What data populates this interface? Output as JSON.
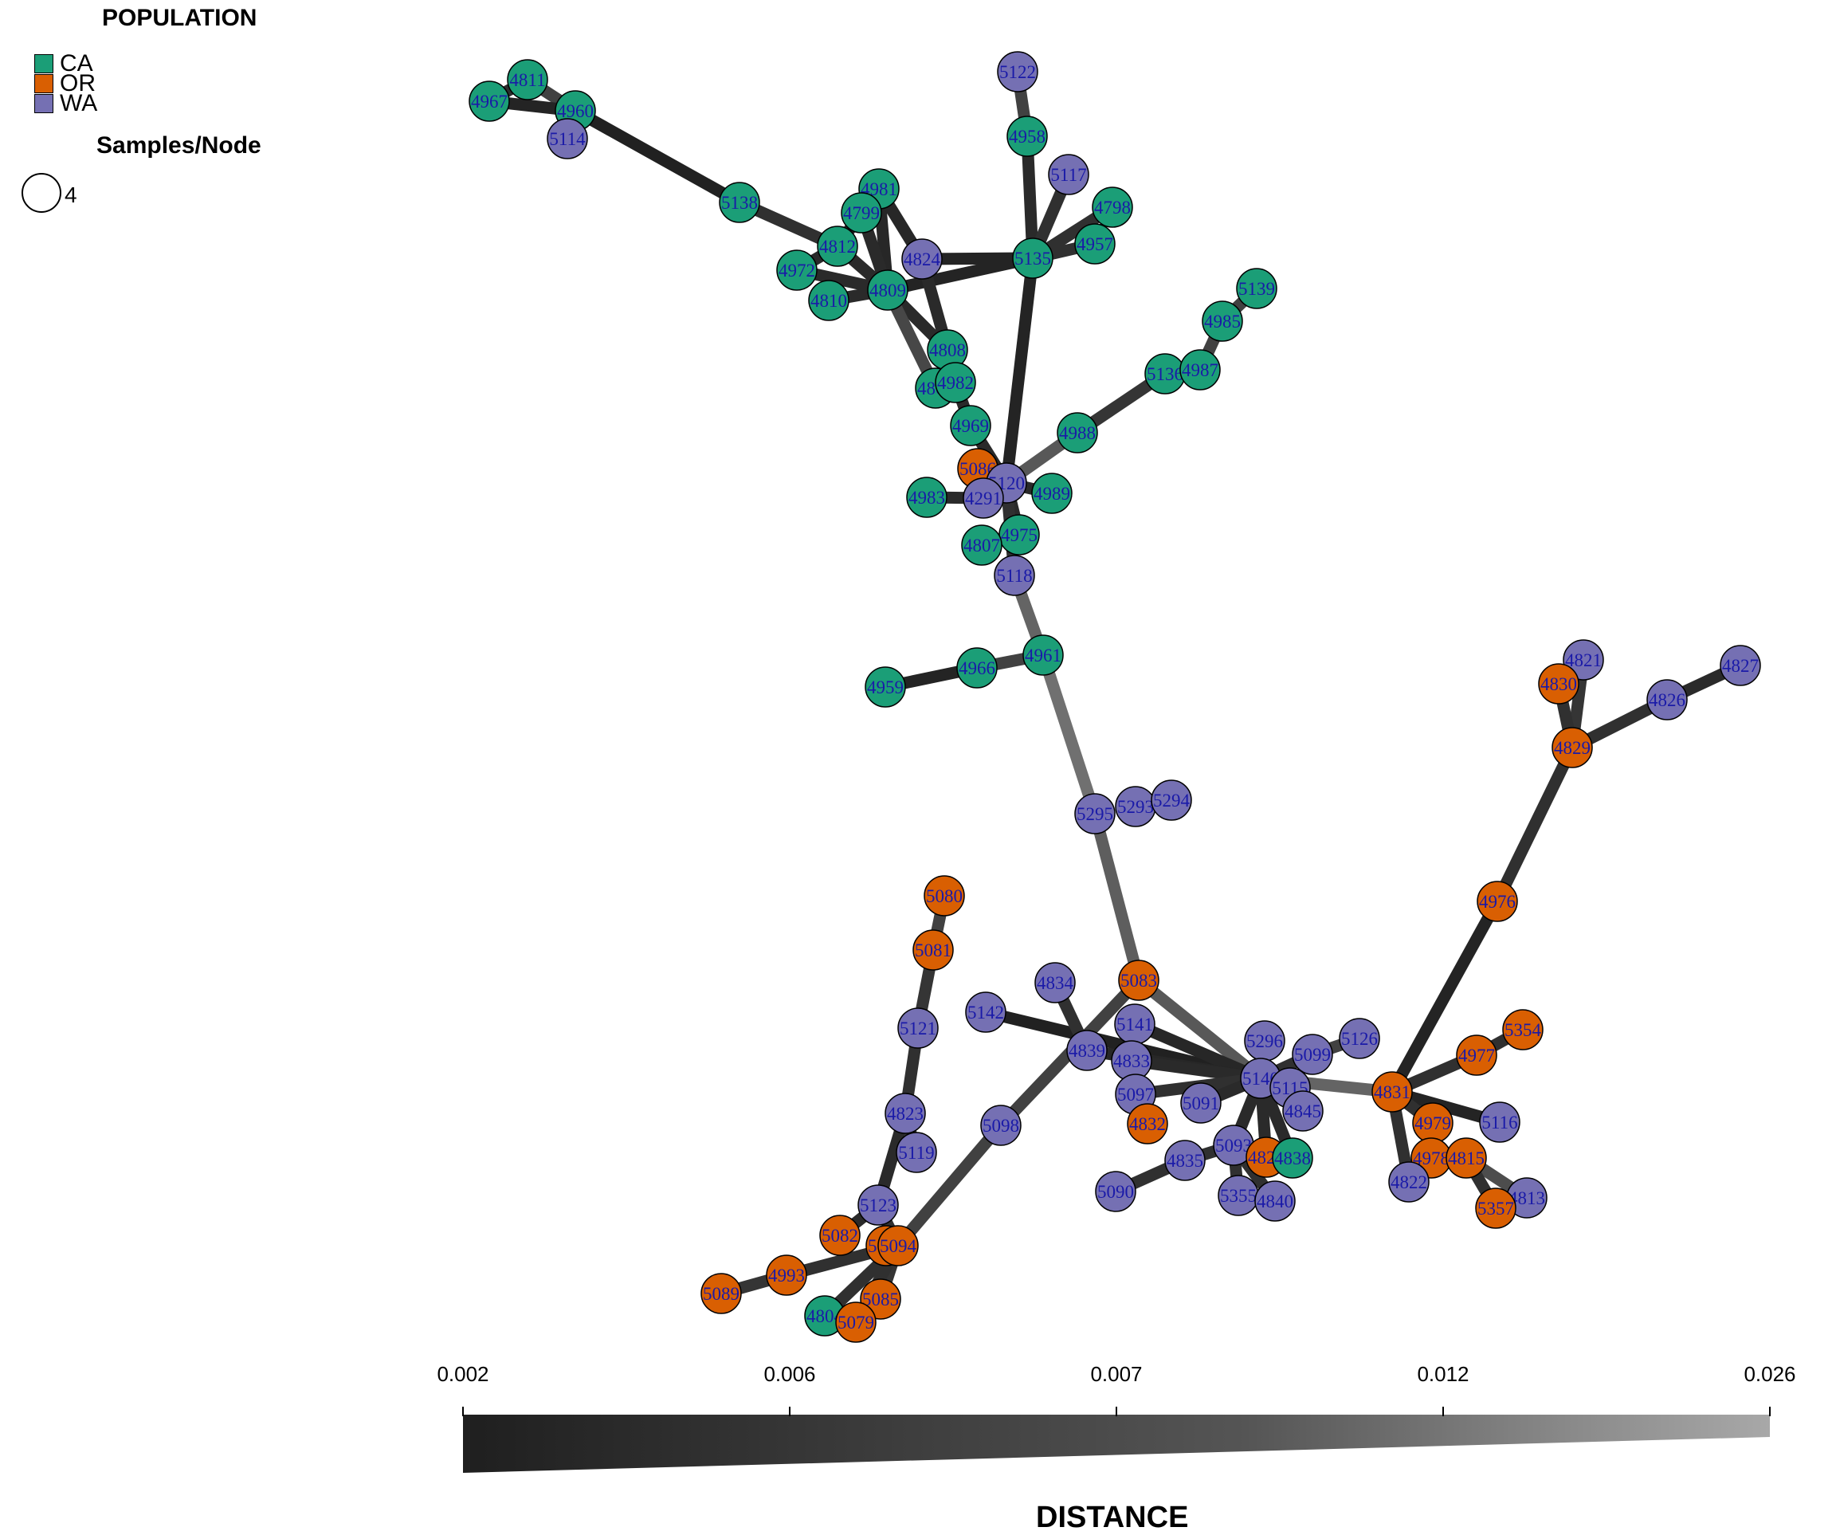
{
  "legend": {
    "title": "POPULATION",
    "items": [
      {
        "label": "CA",
        "color": "#1b9e77"
      },
      {
        "label": "OR",
        "color": "#d95f02"
      },
      {
        "label": "WA",
        "color": "#7570b3"
      }
    ],
    "size_title": "Samples/Node",
    "size_value": "4"
  },
  "scale": {
    "title": "DISTANCE",
    "ticks": [
      "0.002",
      "0.006",
      "0.007",
      "0.012",
      "0.026"
    ]
  },
  "chart_data": {
    "type": "network",
    "node_label_color": "#1a1aa8",
    "nodes": [
      {
        "id": "5122",
        "pop": "WA"
      },
      {
        "id": "4811",
        "pop": "CA"
      },
      {
        "id": "4967",
        "pop": "CA"
      },
      {
        "id": "4960",
        "pop": "CA"
      },
      {
        "id": "5114",
        "pop": "WA"
      },
      {
        "id": "4958",
        "pop": "CA"
      },
      {
        "id": "5117",
        "pop": "WA"
      },
      {
        "id": "4981",
        "pop": "CA"
      },
      {
        "id": "4798",
        "pop": "CA"
      },
      {
        "id": "5138",
        "pop": "CA"
      },
      {
        "id": "4799",
        "pop": "CA"
      },
      {
        "id": "4957",
        "pop": "CA"
      },
      {
        "id": "4812",
        "pop": "CA"
      },
      {
        "id": "4824",
        "pop": "WA"
      },
      {
        "id": "5135",
        "pop": "CA"
      },
      {
        "id": "4972",
        "pop": "CA"
      },
      {
        "id": "4809",
        "pop": "CA"
      },
      {
        "id": "4810",
        "pop": "CA"
      },
      {
        "id": "5139",
        "pop": "CA"
      },
      {
        "id": "4985",
        "pop": "CA"
      },
      {
        "id": "4808",
        "pop": "CA"
      },
      {
        "id": "5136",
        "pop": "CA"
      },
      {
        "id": "4987",
        "pop": "CA"
      },
      {
        "id": "4805",
        "pop": "CA"
      },
      {
        "id": "4982",
        "pop": "CA"
      },
      {
        "id": "4969",
        "pop": "CA"
      },
      {
        "id": "4988",
        "pop": "CA"
      },
      {
        "id": "5086",
        "pop": "OR"
      },
      {
        "id": "5120",
        "pop": "WA"
      },
      {
        "id": "4983",
        "pop": "CA"
      },
      {
        "id": "4291",
        "pop": "WA"
      },
      {
        "id": "4989",
        "pop": "CA"
      },
      {
        "id": "4975",
        "pop": "CA"
      },
      {
        "id": "4807",
        "pop": "CA"
      },
      {
        "id": "5118",
        "pop": "WA"
      },
      {
        "id": "4961",
        "pop": "CA"
      },
      {
        "id": "4966",
        "pop": "CA"
      },
      {
        "id": "4959",
        "pop": "CA"
      },
      {
        "id": "4821",
        "pop": "WA"
      },
      {
        "id": "4830",
        "pop": "OR"
      },
      {
        "id": "4827",
        "pop": "WA"
      },
      {
        "id": "4826",
        "pop": "WA"
      },
      {
        "id": "4829",
        "pop": "OR"
      },
      {
        "id": "5295",
        "pop": "WA"
      },
      {
        "id": "5293",
        "pop": "WA"
      },
      {
        "id": "5294",
        "pop": "WA"
      },
      {
        "id": "5080",
        "pop": "OR"
      },
      {
        "id": "4976",
        "pop": "OR"
      },
      {
        "id": "5081",
        "pop": "OR"
      },
      {
        "id": "5083",
        "pop": "OR"
      },
      {
        "id": "4834",
        "pop": "WA"
      },
      {
        "id": "5142",
        "pop": "WA"
      },
      {
        "id": "5141",
        "pop": "WA"
      },
      {
        "id": "5121",
        "pop": "WA"
      },
      {
        "id": "5354",
        "pop": "OR"
      },
      {
        "id": "5296",
        "pop": "WA"
      },
      {
        "id": "5126",
        "pop": "WA"
      },
      {
        "id": "4839",
        "pop": "WA"
      },
      {
        "id": "4833",
        "pop": "WA"
      },
      {
        "id": "4977",
        "pop": "OR"
      },
      {
        "id": "5099",
        "pop": "WA"
      },
      {
        "id": "5140",
        "pop": "WA"
      },
      {
        "id": "5115",
        "pop": "WA"
      },
      {
        "id": "4831",
        "pop": "OR"
      },
      {
        "id": "5097",
        "pop": "WA"
      },
      {
        "id": "5091",
        "pop": "WA"
      },
      {
        "id": "4845",
        "pop": "WA"
      },
      {
        "id": "4832",
        "pop": "OR"
      },
      {
        "id": "4979",
        "pop": "OR"
      },
      {
        "id": "5116",
        "pop": "WA"
      },
      {
        "id": "4823",
        "pop": "WA"
      },
      {
        "id": "5098",
        "pop": "WA"
      },
      {
        "id": "5093",
        "pop": "WA"
      },
      {
        "id": "4828",
        "pop": "OR"
      },
      {
        "id": "4838",
        "pop": "CA"
      },
      {
        "id": "4835",
        "pop": "WA"
      },
      {
        "id": "4978",
        "pop": "OR"
      },
      {
        "id": "4815",
        "pop": "OR"
      },
      {
        "id": "5119",
        "pop": "WA"
      },
      {
        "id": "4822",
        "pop": "WA"
      },
      {
        "id": "5090",
        "pop": "WA"
      },
      {
        "id": "5355",
        "pop": "WA"
      },
      {
        "id": "4840",
        "pop": "WA"
      },
      {
        "id": "4813",
        "pop": "WA"
      },
      {
        "id": "5357",
        "pop": "OR"
      },
      {
        "id": "5123",
        "pop": "WA"
      },
      {
        "id": "5082",
        "pop": "OR"
      },
      {
        "id": "5084",
        "pop": "OR"
      },
      {
        "id": "5094",
        "pop": "OR"
      },
      {
        "id": "4993",
        "pop": "OR"
      },
      {
        "id": "5089",
        "pop": "OR"
      },
      {
        "id": "5085",
        "pop": "OR"
      },
      {
        "id": "4804",
        "pop": "CA"
      },
      {
        "id": "5079",
        "pop": "OR"
      }
    ],
    "edges": [
      [
        "4967",
        "4811",
        0.0045
      ],
      [
        "4811",
        "4960",
        0.008
      ],
      [
        "4967",
        "4960",
        0.003
      ],
      [
        "4960",
        "5114",
        0.008
      ],
      [
        "4960",
        "5138",
        0.0025
      ],
      [
        "5138",
        "4812",
        0.005
      ],
      [
        "4812",
        "4981",
        0.003
      ],
      [
        "4812",
        "4799",
        0.004
      ],
      [
        "4812",
        "4972",
        0.004
      ],
      [
        "4812",
        "4809",
        0.004
      ],
      [
        "4981",
        "4809",
        0.0035
      ],
      [
        "4799",
        "4809",
        0.004
      ],
      [
        "4981",
        "4824",
        0.0035
      ],
      [
        "4972",
        "4809",
        0.004
      ],
      [
        "4810",
        "4809",
        0.004
      ],
      [
        "4809",
        "5135",
        0.003
      ],
      [
        "4809",
        "4808",
        0.004
      ],
      [
        "4809",
        "4805",
        0.009
      ],
      [
        "4824",
        "4808",
        0.004
      ],
      [
        "4824",
        "5135",
        0.003
      ],
      [
        "5122",
        "4958",
        0.008
      ],
      [
        "4958",
        "5135",
        0.004
      ],
      [
        "5117",
        "5135",
        0.005
      ],
      [
        "4798",
        "5135",
        0.005
      ],
      [
        "4957",
        "5135",
        0.005
      ],
      [
        "5135",
        "5120",
        0.003
      ],
      [
        "4808",
        "4982",
        0.004
      ],
      [
        "4805",
        "4982",
        0.004
      ],
      [
        "4982",
        "4969",
        0.004
      ],
      [
        "4969",
        "5120",
        0.004
      ],
      [
        "5139",
        "4985",
        0.008
      ],
      [
        "4985",
        "4987",
        0.008
      ],
      [
        "5136",
        "4987",
        0.006
      ],
      [
        "5136",
        "4988",
        0.006
      ],
      [
        "4988",
        "5120",
        0.012
      ],
      [
        "5086",
        "5120",
        0.004
      ],
      [
        "4983",
        "4291",
        0.004
      ],
      [
        "4291",
        "5120",
        0.004
      ],
      [
        "4989",
        "5120",
        0.004
      ],
      [
        "5120",
        "4975",
        0.004
      ],
      [
        "4975",
        "4807",
        0.004
      ],
      [
        "5120",
        "5118",
        0.005
      ],
      [
        "5118",
        "4961",
        0.014
      ],
      [
        "4959",
        "4966",
        0.003
      ],
      [
        "4966",
        "4961",
        0.008
      ],
      [
        "4961",
        "5295",
        0.016
      ],
      [
        "5295",
        "5083",
        0.013
      ],
      [
        "4821",
        "4829",
        0.006
      ],
      [
        "4830",
        "4829",
        0.005
      ],
      [
        "4827",
        "4826",
        0.004
      ],
      [
        "4826",
        "4829",
        0.005
      ],
      [
        "4829",
        "4976",
        0.005
      ],
      [
        "4976",
        "4831",
        0.003
      ],
      [
        "5080",
        "5081",
        0.008
      ],
      [
        "5081",
        "5121",
        0.006
      ],
      [
        "5121",
        "4823",
        0.005
      ],
      [
        "4823",
        "5119",
        0.006
      ],
      [
        "4823",
        "5123",
        0.004
      ],
      [
        "5123",
        "5082",
        0.004
      ],
      [
        "5123",
        "5094",
        0.005
      ],
      [
        "5094",
        "4993",
        0.005
      ],
      [
        "4993",
        "5089",
        0.006
      ],
      [
        "5094",
        "5085",
        0.006
      ],
      [
        "5094",
        "4804",
        0.005
      ],
      [
        "5094",
        "5079",
        0.005
      ],
      [
        "5094",
        "5098",
        0.008
      ],
      [
        "5098",
        "5083",
        0.008
      ],
      [
        "5083",
        "5140",
        0.012
      ],
      [
        "5142",
        "5140",
        0.0025
      ],
      [
        "5141",
        "5140",
        0.0035
      ],
      [
        "4839",
        "5140",
        0.0035
      ],
      [
        "4833",
        "5140",
        0.004
      ],
      [
        "4834",
        "4839",
        0.005
      ],
      [
        "5097",
        "5140",
        0.005
      ],
      [
        "5097",
        "4832",
        0.005
      ],
      [
        "5091",
        "5140",
        0.004
      ],
      [
        "5296",
        "5140",
        0.005
      ],
      [
        "5099",
        "5140",
        0.005
      ],
      [
        "5126",
        "5099",
        0.008
      ],
      [
        "5140",
        "4845",
        0.004
      ],
      [
        "5140",
        "5093",
        0.004
      ],
      [
        "5140",
        "4828",
        0.004
      ],
      [
        "5140",
        "4838",
        0.004
      ],
      [
        "5093",
        "4835",
        0.005
      ],
      [
        "4835",
        "5090",
        0.005
      ],
      [
        "5093",
        "5355",
        0.005
      ],
      [
        "5093",
        "4840",
        0.005
      ],
      [
        "5140",
        "4831",
        0.014
      ],
      [
        "4831",
        "4977",
        0.005
      ],
      [
        "4977",
        "5354",
        0.005
      ],
      [
        "4831",
        "5116",
        0.003
      ],
      [
        "4831",
        "4979",
        0.005
      ],
      [
        "4831",
        "4822",
        0.005
      ],
      [
        "4979",
        "4978",
        0.005
      ],
      [
        "4978",
        "4815",
        0.005
      ],
      [
        "4815",
        "4813",
        0.01
      ],
      [
        "4815",
        "5357",
        0.005
      ]
    ]
  }
}
